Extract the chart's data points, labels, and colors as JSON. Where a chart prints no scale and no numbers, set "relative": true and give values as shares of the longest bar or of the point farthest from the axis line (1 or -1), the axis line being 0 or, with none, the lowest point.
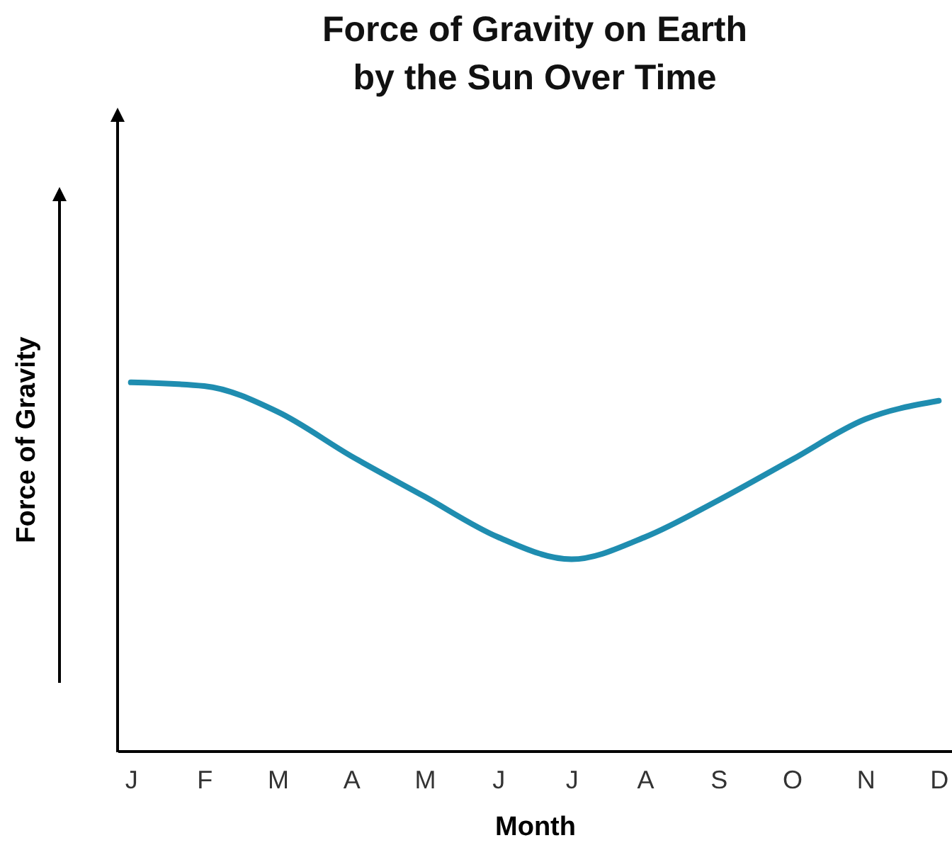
{
  "chart_data": {
    "type": "line",
    "title": "Force of Gravity on Earth\nby the Sun Over Time",
    "xlabel": "Month",
    "ylabel": "Force of Gravity",
    "relative": true,
    "categories": [
      "J",
      "F",
      "M",
      "A",
      "M",
      "J",
      "J",
      "A",
      "S",
      "O",
      "N",
      "D"
    ],
    "series": [
      {
        "color": "#1f8db0",
        "values": [
          1.0,
          0.99,
          0.92,
          0.8,
          0.69,
          0.58,
          0.52,
          0.58,
          0.68,
          0.79,
          0.9,
          0.95
        ]
      }
    ],
    "grid": false,
    "marker": "none",
    "line_style": "solid"
  }
}
